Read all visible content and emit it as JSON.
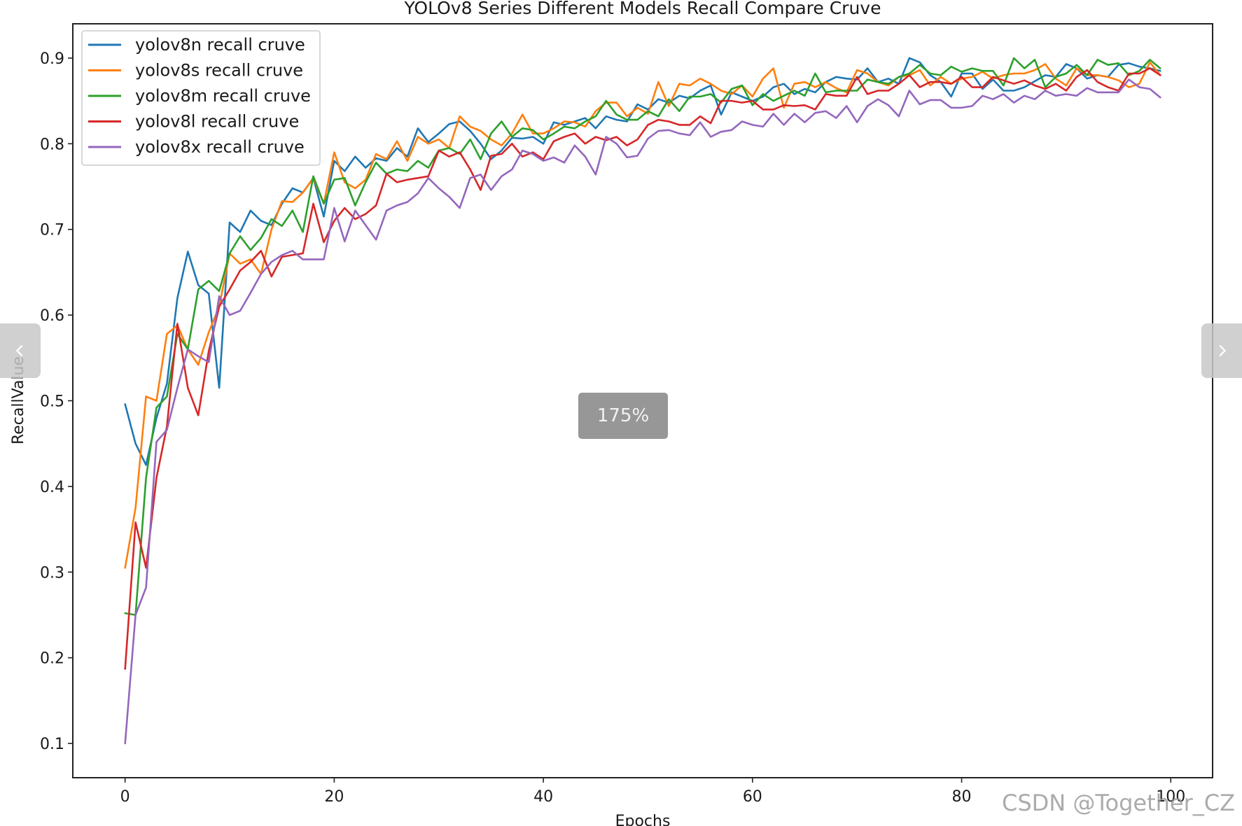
{
  "viewer": {
    "zoom_label": "175%",
    "watermark": "CSDN @Together_CZ",
    "prev_icon": "chevron-left-icon",
    "next_icon": "chevron-right-icon"
  },
  "chart_data": {
    "type": "line",
    "title": "YOLOv8 Series Different Models Recall Compare Cruve",
    "xlabel": "Epochs",
    "ylabel": "RecallValue",
    "xlim": [
      -5,
      104
    ],
    "ylim": [
      0.06,
      0.94
    ],
    "xticks": [
      0,
      20,
      40,
      60,
      80,
      100
    ],
    "yticks": [
      0.1,
      0.2,
      0.3,
      0.4,
      0.5,
      0.6,
      0.7,
      0.8,
      0.9
    ],
    "grid": false,
    "legend_position": "top-left",
    "x": [
      0,
      1,
      2,
      3,
      4,
      5,
      6,
      7,
      8,
      9,
      10,
      11,
      12,
      13,
      14,
      15,
      16,
      17,
      18,
      19,
      20,
      21,
      22,
      23,
      24,
      25,
      26,
      27,
      28,
      29,
      30,
      31,
      32,
      33,
      34,
      35,
      36,
      37,
      38,
      39,
      40,
      41,
      42,
      43,
      44,
      45,
      46,
      47,
      48,
      49,
      50,
      51,
      52,
      53,
      54,
      55,
      56,
      57,
      58,
      59,
      60,
      61,
      62,
      63,
      64,
      65,
      66,
      67,
      68,
      69,
      70,
      71,
      72,
      73,
      74,
      75,
      76,
      77,
      78,
      79,
      80,
      81,
      82,
      83,
      84,
      85,
      86,
      87,
      88,
      89,
      90,
      91,
      92,
      93,
      94,
      95,
      96,
      97,
      98,
      99
    ],
    "series": [
      {
        "name": "yolov8n recall cruve",
        "color": "#1f77b4",
        "values": [
          0.496,
          0.45,
          0.425,
          0.48,
          0.52,
          0.62,
          0.674,
          0.635,
          0.625,
          0.515,
          0.708,
          0.697,
          0.722,
          0.71,
          0.705,
          0.73,
          0.748,
          0.743,
          0.76,
          0.715,
          0.78,
          0.768,
          0.785,
          0.772,
          0.783,
          0.78,
          0.795,
          0.785,
          0.818,
          0.802,
          0.812,
          0.823,
          0.826,
          0.815,
          0.8,
          0.782,
          0.792,
          0.807,
          0.806,
          0.808,
          0.8,
          0.825,
          0.822,
          0.826,
          0.83,
          0.818,
          0.832,
          0.828,
          0.826,
          0.846,
          0.84,
          0.852,
          0.848,
          0.856,
          0.853,
          0.862,
          0.868,
          0.834,
          0.86,
          0.855,
          0.85,
          0.855,
          0.866,
          0.87,
          0.858,
          0.864,
          0.86,
          0.872,
          0.878,
          0.876,
          0.875,
          0.888,
          0.872,
          0.876,
          0.87,
          0.9,
          0.895,
          0.88,
          0.872,
          0.855,
          0.882,
          0.882,
          0.864,
          0.875,
          0.862,
          0.862,
          0.866,
          0.873,
          0.88,
          0.878,
          0.893,
          0.888,
          0.876,
          0.88,
          0.878,
          0.892,
          0.894,
          0.89,
          0.888,
          0.885
        ]
      },
      {
        "name": "yolov8s recall cruve",
        "color": "#ff7f0e",
        "values": [
          0.305,
          0.375,
          0.505,
          0.5,
          0.578,
          0.588,
          0.56,
          0.542,
          0.58,
          0.61,
          0.672,
          0.66,
          0.665,
          0.648,
          0.7,
          0.733,
          0.732,
          0.743,
          0.76,
          0.73,
          0.79,
          0.755,
          0.748,
          0.758,
          0.788,
          0.782,
          0.803,
          0.78,
          0.808,
          0.8,
          0.805,
          0.795,
          0.832,
          0.82,
          0.815,
          0.805,
          0.798,
          0.812,
          0.834,
          0.812,
          0.812,
          0.818,
          0.826,
          0.825,
          0.82,
          0.838,
          0.848,
          0.848,
          0.832,
          0.842,
          0.835,
          0.872,
          0.844,
          0.87,
          0.868,
          0.876,
          0.87,
          0.862,
          0.858,
          0.868,
          0.855,
          0.876,
          0.888,
          0.842,
          0.87,
          0.872,
          0.866,
          0.872,
          0.865,
          0.86,
          0.886,
          0.882,
          0.872,
          0.868,
          0.878,
          0.88,
          0.886,
          0.868,
          0.878,
          0.87,
          0.876,
          0.878,
          0.884,
          0.876,
          0.88,
          0.882,
          0.882,
          0.886,
          0.893,
          0.876,
          0.868,
          0.888,
          0.88,
          0.88,
          0.878,
          0.874,
          0.866,
          0.87,
          0.895,
          0.88
        ]
      },
      {
        "name": "yolov8m recall cruve",
        "color": "#2ca02c",
        "values": [
          0.252,
          0.25,
          0.41,
          0.492,
          0.505,
          0.578,
          0.56,
          0.63,
          0.64,
          0.628,
          0.672,
          0.692,
          0.676,
          0.69,
          0.712,
          0.704,
          0.722,
          0.697,
          0.762,
          0.73,
          0.758,
          0.76,
          0.728,
          0.755,
          0.778,
          0.765,
          0.77,
          0.768,
          0.78,
          0.772,
          0.792,
          0.795,
          0.788,
          0.805,
          0.782,
          0.812,
          0.826,
          0.808,
          0.818,
          0.816,
          0.805,
          0.812,
          0.82,
          0.818,
          0.826,
          0.832,
          0.85,
          0.834,
          0.828,
          0.828,
          0.838,
          0.832,
          0.852,
          0.838,
          0.855,
          0.855,
          0.858,
          0.848,
          0.864,
          0.868,
          0.845,
          0.858,
          0.85,
          0.856,
          0.862,
          0.856,
          0.882,
          0.86,
          0.862,
          0.862,
          0.862,
          0.875,
          0.872,
          0.87,
          0.878,
          0.882,
          0.892,
          0.882,
          0.88,
          0.89,
          0.884,
          0.888,
          0.885,
          0.885,
          0.868,
          0.9,
          0.888,
          0.898,
          0.866,
          0.878,
          0.882,
          0.892,
          0.88,
          0.898,
          0.892,
          0.894,
          0.88,
          0.885,
          0.898,
          0.888
        ]
      },
      {
        "name": "yolov8l recall cruve",
        "color": "#d62728",
        "values": [
          0.187,
          0.358,
          0.305,
          0.41,
          0.47,
          0.59,
          0.515,
          0.483,
          0.558,
          0.61,
          0.63,
          0.652,
          0.662,
          0.675,
          0.645,
          0.668,
          0.67,
          0.672,
          0.73,
          0.685,
          0.71,
          0.725,
          0.712,
          0.718,
          0.728,
          0.765,
          0.755,
          0.758,
          0.76,
          0.762,
          0.792,
          0.785,
          0.79,
          0.77,
          0.746,
          0.786,
          0.788,
          0.8,
          0.785,
          0.79,
          0.782,
          0.803,
          0.808,
          0.812,
          0.8,
          0.808,
          0.804,
          0.808,
          0.798,
          0.805,
          0.822,
          0.828,
          0.826,
          0.822,
          0.822,
          0.832,
          0.824,
          0.85,
          0.85,
          0.848,
          0.85,
          0.84,
          0.84,
          0.845,
          0.844,
          0.845,
          0.84,
          0.858,
          0.856,
          0.856,
          0.878,
          0.858,
          0.862,
          0.862,
          0.87,
          0.88,
          0.866,
          0.872,
          0.872,
          0.87,
          0.878,
          0.866,
          0.866,
          0.878,
          0.874,
          0.87,
          0.874,
          0.868,
          0.864,
          0.87,
          0.862,
          0.878,
          0.886,
          0.872,
          0.866,
          0.862,
          0.882,
          0.882,
          0.888,
          0.88
        ]
      },
      {
        "name": "yolov8x recall cruve",
        "color": "#9467bd",
        "values": [
          0.1,
          0.25,
          0.282,
          0.452,
          0.466,
          0.515,
          0.56,
          0.552,
          0.545,
          0.622,
          0.6,
          0.605,
          0.626,
          0.648,
          0.662,
          0.67,
          0.675,
          0.665,
          0.665,
          0.665,
          0.725,
          0.686,
          0.722,
          0.705,
          0.688,
          0.722,
          0.728,
          0.732,
          0.742,
          0.76,
          0.748,
          0.738,
          0.725,
          0.76,
          0.764,
          0.746,
          0.762,
          0.77,
          0.792,
          0.788,
          0.78,
          0.784,
          0.778,
          0.798,
          0.785,
          0.764,
          0.808,
          0.8,
          0.784,
          0.786,
          0.806,
          0.815,
          0.816,
          0.812,
          0.81,
          0.825,
          0.808,
          0.814,
          0.816,
          0.826,
          0.822,
          0.82,
          0.835,
          0.822,
          0.835,
          0.825,
          0.836,
          0.838,
          0.83,
          0.844,
          0.825,
          0.844,
          0.852,
          0.845,
          0.832,
          0.862,
          0.846,
          0.851,
          0.851,
          0.842,
          0.842,
          0.844,
          0.856,
          0.852,
          0.858,
          0.848,
          0.856,
          0.852,
          0.862,
          0.856,
          0.858,
          0.856,
          0.865,
          0.86,
          0.86,
          0.86,
          0.875,
          0.866,
          0.864,
          0.854
        ]
      }
    ]
  }
}
